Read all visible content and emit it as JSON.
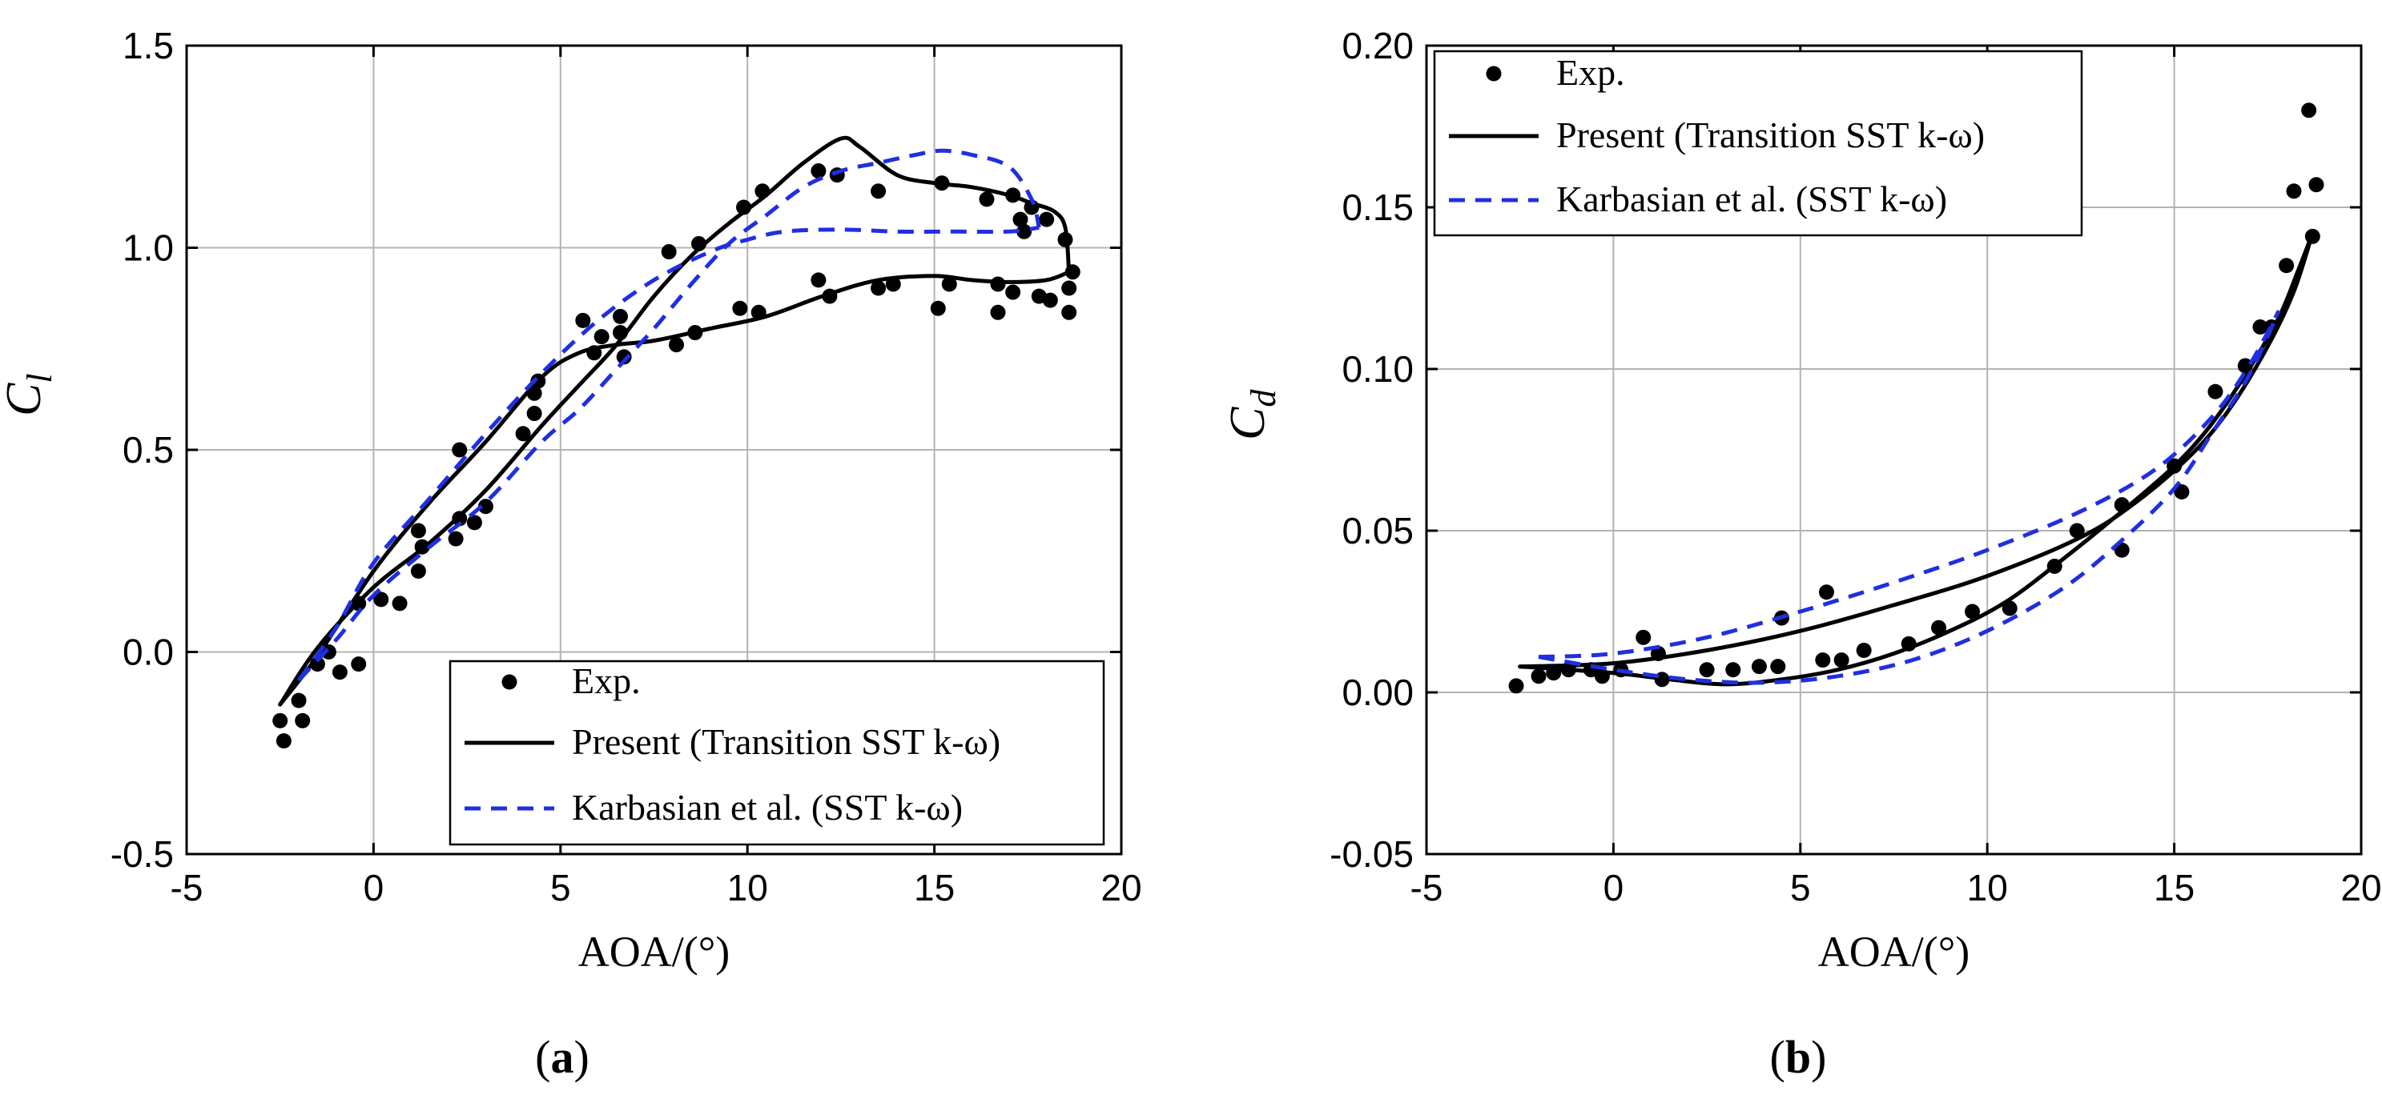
{
  "chart_data": [
    {
      "type": "line",
      "panel_label": "(a)",
      "panel_letter": "a",
      "xlabel": "AOA/(°)",
      "ylabel": "C",
      "ylabel_sub": "l",
      "xlim": [
        -5,
        20
      ],
      "ylim": [
        -0.5,
        1.5
      ],
      "xticks": [
        -5,
        0,
        5,
        10,
        15,
        20
      ],
      "xtick_labels": [
        "-5",
        "0",
        "5",
        "10",
        "15",
        "20"
      ],
      "yticks": [
        -0.5,
        0.0,
        0.5,
        1.0,
        1.5
      ],
      "ytick_labels": [
        "-0.5",
        "0.0",
        "0.5",
        "1.0",
        "1.5"
      ],
      "grid": true,
      "legend_position": "bottom-right",
      "series": [
        {
          "name": "Exp.",
          "kind": "markers",
          "color": "#000000",
          "points": [
            [
              -2.5,
              -0.17
            ],
            [
              -2.4,
              -0.22
            ],
            [
              -2.0,
              -0.12
            ],
            [
              -1.9,
              -0.17
            ],
            [
              -1.5,
              -0.03
            ],
            [
              -1.2,
              0.0
            ],
            [
              -0.9,
              -0.05
            ],
            [
              -0.4,
              -0.03
            ],
            [
              -0.4,
              0.12
            ],
            [
              0.2,
              0.13
            ],
            [
              0.7,
              0.12
            ],
            [
              1.2,
              0.2
            ],
            [
              1.2,
              0.3
            ],
            [
              1.3,
              0.26
            ],
            [
              2.2,
              0.28
            ],
            [
              2.3,
              0.33
            ],
            [
              2.3,
              0.5
            ],
            [
              2.7,
              0.32
            ],
            [
              3.0,
              0.36
            ],
            [
              4.0,
              0.54
            ],
            [
              4.3,
              0.59
            ],
            [
              4.3,
              0.64
            ],
            [
              4.4,
              0.67
            ],
            [
              5.6,
              0.82
            ],
            [
              5.9,
              0.74
            ],
            [
              6.1,
              0.78
            ],
            [
              6.6,
              0.79
            ],
            [
              6.6,
              0.83
            ],
            [
              6.7,
              0.73
            ],
            [
              7.9,
              0.99
            ],
            [
              8.1,
              0.76
            ],
            [
              8.6,
              0.79
            ],
            [
              8.7,
              1.01
            ],
            [
              9.8,
              0.85
            ],
            [
              9.9,
              1.1
            ],
            [
              10.3,
              0.84
            ],
            [
              10.4,
              1.14
            ],
            [
              11.9,
              0.92
            ],
            [
              11.9,
              1.19
            ],
            [
              12.2,
              0.88
            ],
            [
              12.4,
              1.18
            ],
            [
              13.5,
              0.9
            ],
            [
              13.5,
              1.14
            ],
            [
              13.9,
              0.91
            ],
            [
              15.1,
              0.85
            ],
            [
              15.2,
              1.16
            ],
            [
              15.4,
              0.91
            ],
            [
              16.4,
              1.12
            ],
            [
              16.7,
              0.84
            ],
            [
              16.7,
              0.91
            ],
            [
              17.1,
              0.89
            ],
            [
              17.1,
              1.13
            ],
            [
              17.3,
              1.07
            ],
            [
              17.4,
              1.04
            ],
            [
              17.6,
              1.1
            ],
            [
              17.8,
              0.88
            ],
            [
              18.0,
              1.07
            ],
            [
              18.1,
              0.87
            ],
            [
              18.5,
              1.02
            ],
            [
              18.6,
              0.84
            ],
            [
              18.6,
              0.9
            ],
            [
              18.7,
              0.94
            ]
          ]
        },
        {
          "name": "Present (Transition SST k-ω)",
          "kind": "solid",
          "color": "#000000",
          "curves": [
            [
              [
                -2.5,
                -0.13
              ],
              [
                -1.5,
                -0.01
              ],
              [
                0,
                0.2
              ],
              [
                1.5,
                0.37
              ],
              [
                3,
                0.52
              ],
              [
                4.5,
                0.68
              ],
              [
                5.5,
                0.74
              ],
              [
                6.5,
                0.76
              ],
              [
                7.5,
                0.77
              ],
              [
                9,
                0.8
              ],
              [
                10.5,
                0.83
              ],
              [
                12,
                0.88
              ],
              [
                13.5,
                0.92
              ],
              [
                15,
                0.93
              ],
              [
                16,
                0.92
              ],
              [
                17,
                0.915
              ],
              [
                18,
                0.92
              ],
              [
                18.6,
                0.94
              ]
            ],
            [
              [
                -2.5,
                -0.13
              ],
              [
                -1.5,
                0.01
              ],
              [
                0,
                0.16
              ],
              [
                1.5,
                0.27
              ],
              [
                3,
                0.4
              ],
              [
                4.5,
                0.56
              ],
              [
                5.5,
                0.66
              ],
              [
                6.5,
                0.76
              ],
              [
                7.5,
                0.88
              ],
              [
                8.5,
                0.98
              ],
              [
                9.5,
                1.06
              ],
              [
                10.5,
                1.13
              ],
              [
                11.5,
                1.21
              ],
              [
                12.5,
                1.27
              ],
              [
                13,
                1.25
              ],
              [
                14,
                1.18
              ],
              [
                15,
                1.16
              ],
              [
                16,
                1.15
              ],
              [
                17,
                1.13
              ],
              [
                17.6,
                1.11
              ],
              [
                18.2,
                1.09
              ],
              [
                18.5,
                1.05
              ],
              [
                18.6,
                0.94
              ]
            ]
          ]
        },
        {
          "name": "Karbasian et al. (SST k-ω)",
          "kind": "dashed",
          "color": "#1f2fe0",
          "curves": [
            [
              [
                -2.0,
                -0.07
              ],
              [
                -1,
                0.06
              ],
              [
                0,
                0.22
              ],
              [
                1.5,
                0.38
              ],
              [
                3,
                0.54
              ],
              [
                4.5,
                0.69
              ],
              [
                6,
                0.82
              ],
              [
                7.5,
                0.92
              ],
              [
                9,
                0.99
              ],
              [
                10,
                1.02
              ],
              [
                11,
                1.04
              ],
              [
                12.5,
                1.045
              ],
              [
                14,
                1.04
              ],
              [
                15.5,
                1.04
              ],
              [
                17,
                1.04
              ],
              [
                17.8,
                1.05
              ]
            ],
            [
              [
                -2.0,
                -0.07
              ],
              [
                -1,
                0.03
              ],
              [
                0,
                0.14
              ],
              [
                1.5,
                0.26
              ],
              [
                3,
                0.37
              ],
              [
                4.5,
                0.52
              ],
              [
                5.5,
                0.6
              ],
              [
                6.5,
                0.7
              ],
              [
                7.5,
                0.8
              ],
              [
                8.5,
                0.91
              ],
              [
                9.5,
                1.01
              ],
              [
                10.5,
                1.08
              ],
              [
                11.5,
                1.15
              ],
              [
                12.5,
                1.19
              ],
              [
                13.5,
                1.21
              ],
              [
                14.5,
                1.23
              ],
              [
                15.2,
                1.24
              ],
              [
                16,
                1.23
              ],
              [
                17,
                1.2
              ],
              [
                17.6,
                1.12
              ],
              [
                17.8,
                1.05
              ]
            ]
          ]
        }
      ]
    },
    {
      "type": "line",
      "panel_label": "(b)",
      "panel_letter": "b",
      "xlabel": "AOA/(°)",
      "ylabel": "C",
      "ylabel_sub": "d",
      "xlim": [
        -5,
        20
      ],
      "ylim": [
        -0.05,
        0.2
      ],
      "xticks": [
        -5,
        0,
        5,
        10,
        15,
        20
      ],
      "xtick_labels": [
        "-5",
        "0",
        "5",
        "10",
        "15",
        "20"
      ],
      "yticks": [
        -0.05,
        0.0,
        0.05,
        0.1,
        0.15,
        0.2
      ],
      "ytick_labels": [
        "-0.05",
        "0.00",
        "0.05",
        "0.10",
        "0.15",
        "0.20"
      ],
      "grid": true,
      "legend_position": "top-left",
      "series": [
        {
          "name": "Exp.",
          "kind": "markers",
          "color": "#000000",
          "points": [
            [
              -2.6,
              0.002
            ],
            [
              -2.0,
              0.005
            ],
            [
              -1.6,
              0.006
            ],
            [
              -1.2,
              0.007
            ],
            [
              -0.6,
              0.007
            ],
            [
              -0.3,
              0.005
            ],
            [
              0.2,
              0.007
            ],
            [
              0.8,
              0.017
            ],
            [
              1.2,
              0.012
            ],
            [
              1.3,
              0.004
            ],
            [
              2.5,
              0.007
            ],
            [
              3.2,
              0.007
            ],
            [
              3.9,
              0.008
            ],
            [
              4.4,
              0.008
            ],
            [
              4.5,
              0.023
            ],
            [
              5.6,
              0.01
            ],
            [
              5.7,
              0.031
            ],
            [
              6.1,
              0.01
            ],
            [
              6.7,
              0.013
            ],
            [
              7.9,
              0.015
            ],
            [
              8.7,
              0.02
            ],
            [
              9.6,
              0.025
            ],
            [
              10.6,
              0.026
            ],
            [
              11.8,
              0.039
            ],
            [
              12.4,
              0.05
            ],
            [
              13.6,
              0.044
            ],
            [
              13.6,
              0.058
            ],
            [
              15.0,
              0.07
            ],
            [
              15.2,
              0.062
            ],
            [
              16.1,
              0.093
            ],
            [
              16.9,
              0.101
            ],
            [
              17.3,
              0.113
            ],
            [
              17.6,
              0.113
            ],
            [
              18.0,
              0.132
            ],
            [
              18.2,
              0.155
            ],
            [
              18.6,
              0.18
            ],
            [
              18.7,
              0.141
            ],
            [
              18.8,
              0.157
            ]
          ]
        },
        {
          "name": "Present (Transition SST k-ω)",
          "kind": "solid",
          "color": "#000000",
          "curves": [
            [
              [
                -2.5,
                0.008
              ],
              [
                0,
                0.009
              ],
              [
                2.5,
                0.013
              ],
              [
                5,
                0.019
              ],
              [
                7.5,
                0.027
              ],
              [
                10,
                0.036
              ],
              [
                12.5,
                0.048
              ],
              [
                14,
                0.059
              ],
              [
                15.5,
                0.074
              ],
              [
                16.5,
                0.088
              ],
              [
                17.5,
                0.107
              ],
              [
                18.2,
                0.124
              ],
              [
                18.7,
                0.142
              ]
            ],
            [
              [
                -2.5,
                0.008
              ],
              [
                0,
                0.006
              ],
              [
                1.5,
                0.004
              ],
              [
                3,
                0.0025
              ],
              [
                4.5,
                0.004
              ],
              [
                6,
                0.007
              ],
              [
                7.5,
                0.012
              ],
              [
                9,
                0.019
              ],
              [
                10.5,
                0.028
              ],
              [
                12,
                0.041
              ],
              [
                13.5,
                0.055
              ],
              [
                15,
                0.07
              ],
              [
                16,
                0.083
              ],
              [
                17,
                0.1
              ],
              [
                17.8,
                0.116
              ],
              [
                18.3,
                0.13
              ],
              [
                18.7,
                0.142
              ]
            ]
          ]
        },
        {
          "name": "Karbasian et al. (SST k-ω)",
          "kind": "dashed",
          "color": "#1f2fe0",
          "curves": [
            [
              [
                -2.0,
                0.011
              ],
              [
                0,
                0.012
              ],
              [
                2.5,
                0.017
              ],
              [
                5,
                0.025
              ],
              [
                7.5,
                0.034
              ],
              [
                10,
                0.044
              ],
              [
                12.5,
                0.056
              ],
              [
                14.5,
                0.069
              ],
              [
                16,
                0.085
              ],
              [
                17,
                0.101
              ],
              [
                17.8,
                0.118
              ]
            ],
            [
              [
                -2.0,
                0.011
              ],
              [
                0,
                0.007
              ],
              [
                2,
                0.004
              ],
              [
                4,
                0.003
              ],
              [
                6,
                0.005
              ],
              [
                8,
                0.01
              ],
              [
                10,
                0.019
              ],
              [
                12,
                0.032
              ],
              [
                13.5,
                0.046
              ],
              [
                15,
                0.063
              ],
              [
                16,
                0.08
              ],
              [
                17,
                0.098
              ],
              [
                17.8,
                0.118
              ]
            ]
          ]
        }
      ]
    }
  ],
  "colors": {
    "experiment": "#000000",
    "present": "#000000",
    "karbasian": "#1f2fe0",
    "grid": "#b3b3b3",
    "frame": "#000000"
  }
}
